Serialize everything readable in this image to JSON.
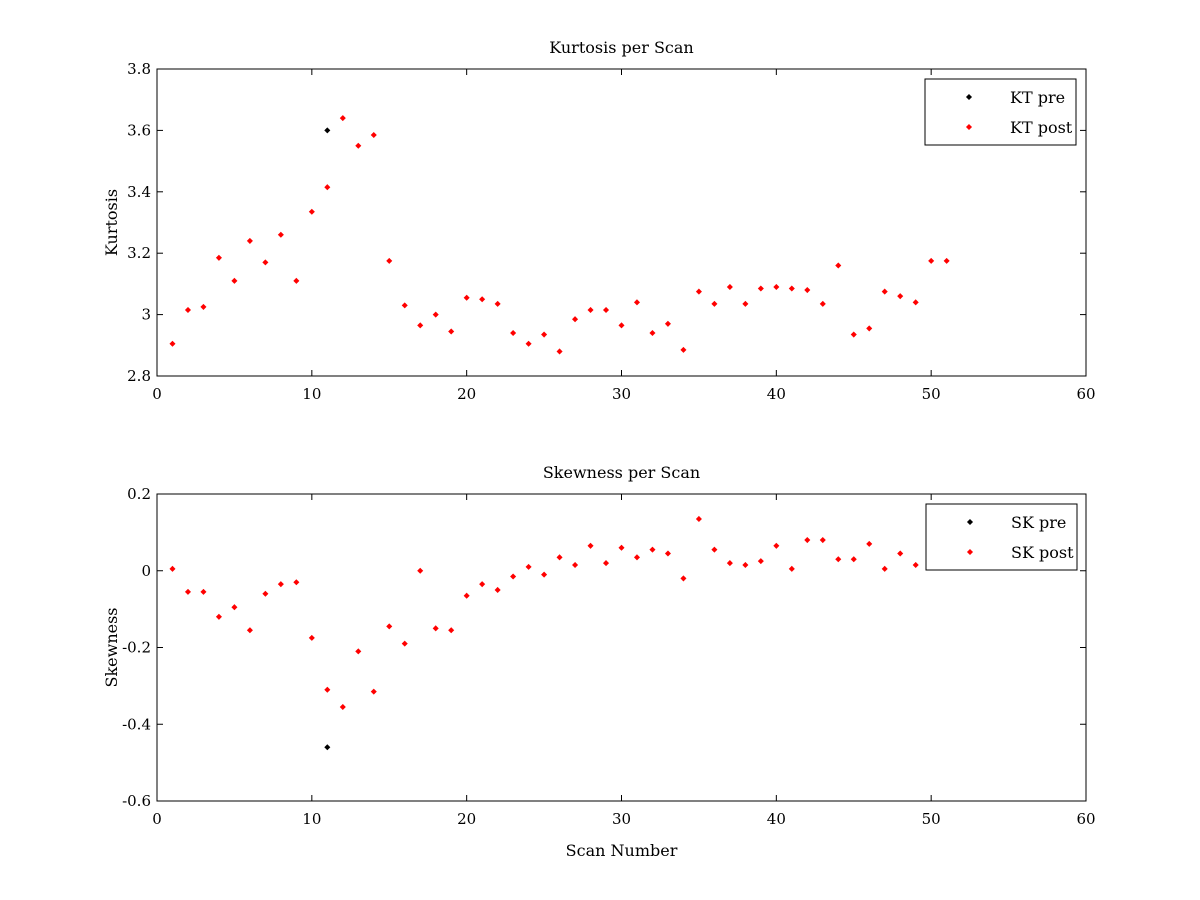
{
  "chart_data": [
    {
      "type": "scatter",
      "title": "Kurtosis per Scan",
      "xlabel": "",
      "ylabel": "Kurtosis",
      "xlim": [
        0,
        60
      ],
      "ylim": [
        2.8,
        3.8
      ],
      "xticks": [
        0,
        10,
        20,
        30,
        40,
        50,
        60
      ],
      "yticks": [
        2.8,
        3,
        3.2,
        3.4,
        3.6,
        3.8
      ],
      "xtick_labels": [
        "0",
        "10",
        "20",
        "30",
        "40",
        "50",
        "60"
      ],
      "ytick_labels": [
        "2.8",
        "3",
        "3.2",
        "3.4",
        "3.6",
        "3.8"
      ],
      "grid": false,
      "legend_position": "top-right",
      "series": [
        {
          "name": "KT pre",
          "color": "#000000",
          "x": [
            11
          ],
          "y": [
            3.6
          ]
        },
        {
          "name": "KT post",
          "color": "#ff0000",
          "x": [
            1,
            2,
            3,
            4,
            5,
            6,
            7,
            8,
            9,
            10,
            11,
            12,
            13,
            14,
            15,
            16,
            17,
            18,
            19,
            20,
            21,
            22,
            23,
            24,
            25,
            26,
            27,
            28,
            29,
            30,
            31,
            32,
            33,
            34,
            35,
            36,
            37,
            38,
            39,
            40,
            41,
            42,
            43,
            44,
            45,
            46,
            47,
            48,
            49,
            50,
            51
          ],
          "y": [
            2.905,
            3.015,
            3.025,
            3.185,
            3.11,
            3.24,
            3.17,
            3.26,
            3.11,
            3.335,
            3.415,
            3.64,
            3.55,
            3.585,
            3.175,
            3.03,
            2.965,
            3.0,
            2.945,
            3.055,
            3.05,
            3.035,
            2.94,
            2.905,
            2.935,
            2.88,
            2.985,
            3.015,
            3.015,
            2.965,
            3.04,
            2.94,
            2.97,
            2.885,
            3.075,
            3.035,
            3.09,
            3.035,
            3.085,
            3.09,
            3.085,
            3.08,
            3.035,
            3.16,
            2.935,
            2.955,
            3.075,
            3.06,
            3.04,
            3.175,
            3.175
          ]
        }
      ]
    },
    {
      "type": "scatter",
      "title": "Skewness per Scan",
      "xlabel": "Scan Number",
      "ylabel": "Skewness",
      "xlim": [
        0,
        60
      ],
      "ylim": [
        -0.6,
        0.2
      ],
      "xticks": [
        0,
        10,
        20,
        30,
        40,
        50,
        60
      ],
      "yticks": [
        -0.6,
        -0.4,
        -0.2,
        0,
        0.2
      ],
      "xtick_labels": [
        "0",
        "10",
        "20",
        "30",
        "40",
        "50",
        "60"
      ],
      "ytick_labels": [
        "-0.6",
        "-0.4",
        "-0.2",
        "0",
        "0.2"
      ],
      "grid": false,
      "legend_position": "top-right",
      "series": [
        {
          "name": "SK pre",
          "color": "#000000",
          "x": [
            11
          ],
          "y": [
            -0.46
          ]
        },
        {
          "name": "SK post",
          "color": "#ff0000",
          "x": [
            1,
            2,
            3,
            4,
            5,
            6,
            7,
            8,
            9,
            10,
            11,
            12,
            13,
            14,
            15,
            16,
            17,
            18,
            19,
            20,
            21,
            22,
            23,
            24,
            25,
            26,
            27,
            28,
            29,
            30,
            31,
            32,
            33,
            34,
            35,
            36,
            37,
            38,
            39,
            40,
            41,
            42,
            43,
            44,
            45,
            46,
            47,
            48,
            49
          ],
          "y": [
            0.005,
            -0.055,
            -0.055,
            -0.12,
            -0.095,
            -0.155,
            -0.06,
            -0.035,
            -0.03,
            -0.175,
            -0.31,
            -0.355,
            -0.21,
            -0.315,
            -0.145,
            -0.19,
            0.0,
            -0.15,
            -0.155,
            -0.065,
            -0.035,
            -0.05,
            -0.015,
            0.01,
            -0.01,
            0.035,
            0.015,
            0.065,
            0.02,
            0.06,
            0.035,
            0.055,
            0.045,
            -0.02,
            0.135,
            0.055,
            0.02,
            0.015,
            0.025,
            0.065,
            0.005,
            0.08,
            0.08,
            0.03,
            0.03,
            0.07,
            0.005,
            0.045,
            0.015
          ]
        }
      ]
    }
  ]
}
